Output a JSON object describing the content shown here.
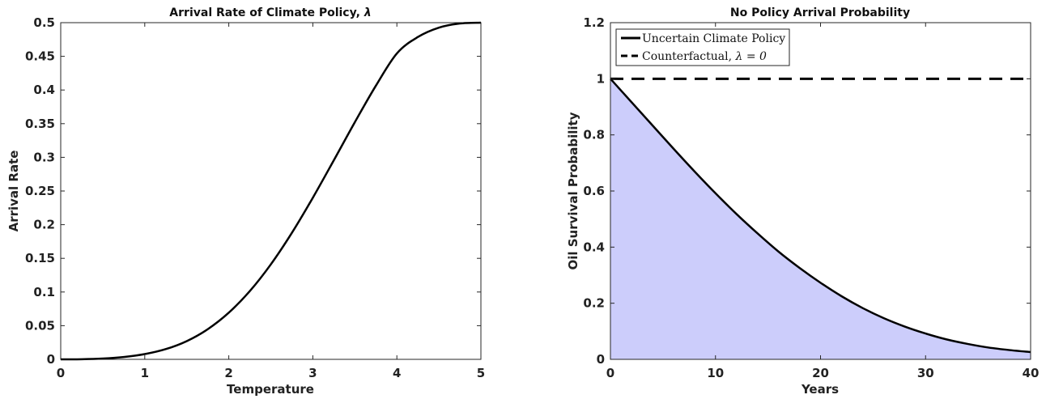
{
  "chart_data": [
    {
      "type": "line",
      "title": "Arrival Rate of Climate Policy, ",
      "title_symbol": "λ",
      "xlabel": "Temperature",
      "ylabel": "Arrival Rate",
      "xlim": [
        0,
        5
      ],
      "ylim": [
        0,
        0.5
      ],
      "xticks": [
        "0",
        "1",
        "2",
        "3",
        "4",
        "5"
      ],
      "yticks": [
        "0",
        "0.05",
        "0.1",
        "0.15",
        "0.2",
        "0.25",
        "0.3",
        "0.35",
        "0.4",
        "0.45",
        "0.5"
      ],
      "grid": false,
      "series": [
        {
          "color": "#000000",
          "x": [
            0,
            0.25,
            0.5,
            0.75,
            1.0,
            1.25,
            1.5,
            1.75,
            2.0,
            2.25,
            2.5,
            2.75,
            3.0,
            3.25,
            3.5,
            3.75,
            4.0,
            4.25,
            4.5,
            4.75,
            5.0
          ],
          "y": [
            0,
            0.0002,
            0.0012,
            0.0035,
            0.0078,
            0.0152,
            0.0271,
            0.0448,
            0.0693,
            0.1013,
            0.141,
            0.1877,
            0.24,
            0.2957,
            0.3522,
            0.4063,
            0.4543,
            0.4787,
            0.4926,
            0.4988,
            0.5
          ]
        }
      ]
    },
    {
      "type": "area",
      "title": "No Policy Arrival Probability",
      "xlabel": "Years",
      "ylabel": "Oil Survival Probability",
      "xlim": [
        0,
        40
      ],
      "ylim": [
        0,
        1.2
      ],
      "xticks": [
        "0",
        "10",
        "20",
        "30",
        "40"
      ],
      "yticks": [
        "0",
        "0.2",
        "0.4",
        "0.6",
        "0.8",
        "1",
        "1.2"
      ],
      "grid": false,
      "legend_position": "top-left",
      "fill_color": "#cccdfb",
      "series": [
        {
          "name": "Uncertain Climate Policy",
          "style": "solid",
          "color": "#000000",
          "x": [
            0,
            2,
            4,
            6,
            8,
            10,
            12,
            14,
            16,
            18,
            20,
            22,
            24,
            26,
            28,
            30,
            32,
            34,
            36,
            38,
            40
          ],
          "y": [
            1.0,
            0.917,
            0.834,
            0.751,
            0.67,
            0.592,
            0.518,
            0.449,
            0.384,
            0.326,
            0.273,
            0.225,
            0.183,
            0.147,
            0.117,
            0.092,
            0.071,
            0.055,
            0.042,
            0.033,
            0.026
          ]
        },
        {
          "name": "Counterfactual, ",
          "name_math": "λ = 0",
          "style": "dashed",
          "color": "#000000",
          "x": [
            0,
            40
          ],
          "y": [
            1.0,
            1.0
          ]
        }
      ]
    }
  ]
}
